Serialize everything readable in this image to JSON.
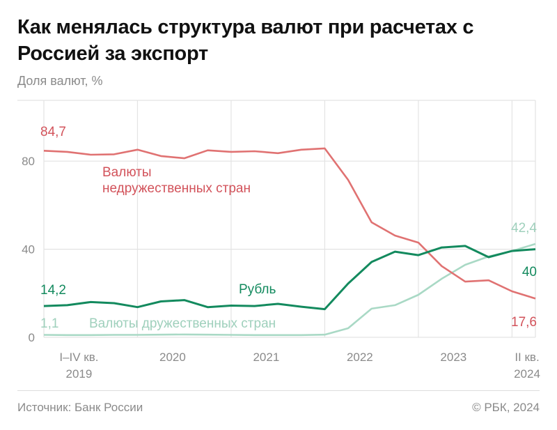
{
  "title": "Как менялась структура валют при расчетах с Россией за экспорт",
  "subtitle": "Доля валют, %",
  "footer": {
    "source": "Источник: Банк России",
    "copyright": "© РБК, 2024"
  },
  "chart_data": {
    "type": "line",
    "ylabel": "Доля валют, %",
    "ylim": [
      0,
      100
    ],
    "yticks": [
      0,
      40,
      80
    ],
    "grid": true,
    "x": [
      "2019 I",
      "2019 II",
      "2019 III",
      "2019 IV",
      "2020 I",
      "2020 II",
      "2020 III",
      "2020 IV",
      "2021 I",
      "2021 II",
      "2021 III",
      "2021 IV",
      "2022 I",
      "2022 II",
      "2022 III",
      "2022 IV",
      "2023 I",
      "2023 II",
      "2023 III",
      "2023 IV",
      "2024 I",
      "2024 II"
    ],
    "xtick_labels": [
      {
        "line1": "I–IV кв.",
        "line2": "2019"
      },
      {
        "line1": "2020",
        "line2": ""
      },
      {
        "line1": "2021",
        "line2": ""
      },
      {
        "line1": "2022",
        "line2": ""
      },
      {
        "line1": "2023",
        "line2": ""
      },
      {
        "line1": "II кв.",
        "line2": "2024"
      }
    ],
    "series": [
      {
        "name": "Валюты недружественных стран",
        "color": "#e07272",
        "label_color": "#d2525a",
        "values": [
          84.7,
          84.2,
          82.9,
          83.1,
          85.2,
          82.3,
          81.3,
          84.9,
          84.2,
          84.5,
          83.6,
          85.2,
          85.8,
          71.5,
          52.2,
          46.2,
          43.0,
          32.3,
          25.3,
          25.9,
          20.9,
          17.6
        ],
        "start_label": "84,7",
        "end_label": "17,6"
      },
      {
        "name": "Рубль",
        "color": "#138a5e",
        "label_color": "#138a5e",
        "values": [
          14.2,
          14.6,
          16.0,
          15.5,
          13.7,
          16.3,
          16.9,
          13.7,
          14.4,
          14.2,
          15.2,
          13.9,
          12.8,
          24.4,
          34.2,
          38.9,
          37.3,
          40.8,
          41.5,
          36.4,
          39.2,
          40.0
        ],
        "start_label": "14,2",
        "end_label": "40"
      },
      {
        "name": "Валюты дружественных стран",
        "color": "#a9d9c5",
        "label_color": "#9fd0bc",
        "values": [
          1.1,
          1.0,
          1.0,
          1.1,
          1.1,
          1.2,
          1.3,
          1.2,
          1.1,
          1.0,
          1.0,
          1.0,
          1.2,
          4.1,
          13.0,
          14.6,
          19.3,
          26.6,
          32.9,
          36.7,
          39.2,
          42.4
        ],
        "start_label": "1,1",
        "end_label": "42,4"
      }
    ],
    "series_labels": [
      "Валюты",
      "недружественных стран",
      "Рубль",
      "Валюты дружественных стран"
    ]
  }
}
